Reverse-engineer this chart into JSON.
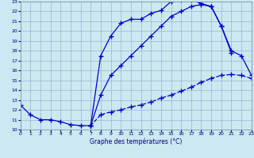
{
  "title": "Graphe des températures (°C)",
  "bg_color": "#cce8f0",
  "grid_color": "#88aacc",
  "line_color": "#0000cc",
  "xlim": [
    0,
    23
  ],
  "ylim": [
    10,
    23
  ],
  "xtick_labels": [
    "0",
    "1",
    "2",
    "3",
    "4",
    "5",
    "6",
    "7",
    "8",
    "9",
    "10",
    "11",
    "12",
    "13",
    "14",
    "15",
    "16",
    "17",
    "18",
    "19",
    "20",
    "21",
    "22",
    "23"
  ],
  "xticks": [
    0,
    1,
    2,
    3,
    4,
    5,
    6,
    7,
    8,
    9,
    10,
    11,
    12,
    13,
    14,
    15,
    16,
    17,
    18,
    19,
    20,
    21,
    22,
    23
  ],
  "yticks": [
    10,
    11,
    12,
    13,
    14,
    15,
    16,
    17,
    18,
    19,
    20,
    21,
    22,
    23
  ],
  "c1_x": [
    0,
    1,
    2,
    3,
    4,
    5,
    6,
    7,
    8,
    9,
    10,
    11,
    12,
    13,
    14,
    15,
    16,
    17,
    18,
    19,
    20,
    21
  ],
  "c1_y": [
    12.5,
    11.5,
    11.0,
    11.0,
    10.8,
    10.5,
    10.4,
    10.4,
    17.5,
    19.5,
    20.8,
    21.2,
    21.2,
    21.8,
    22.1,
    23.0,
    23.2,
    23.2,
    22.8,
    22.5,
    20.5,
    17.8
  ],
  "c2_x": [
    7,
    8,
    9,
    10,
    11,
    12,
    13,
    14,
    15,
    16,
    17,
    18,
    19,
    20,
    21,
    22,
    23
  ],
  "c2_y": [
    10.4,
    13.5,
    15.5,
    16.5,
    17.5,
    18.5,
    19.5,
    20.5,
    21.5,
    22.0,
    22.5,
    22.7,
    22.5,
    20.5,
    18.0,
    17.5,
    15.5
  ],
  "c3_x": [
    7,
    8,
    9,
    10,
    11,
    12,
    13,
    14,
    15,
    16,
    17,
    18,
    19,
    20,
    21,
    22,
    23
  ],
  "c3_y": [
    10.4,
    11.5,
    11.8,
    12.0,
    12.3,
    12.5,
    12.8,
    13.2,
    13.5,
    13.9,
    14.3,
    14.8,
    15.2,
    15.5,
    15.6,
    15.5,
    15.2
  ]
}
